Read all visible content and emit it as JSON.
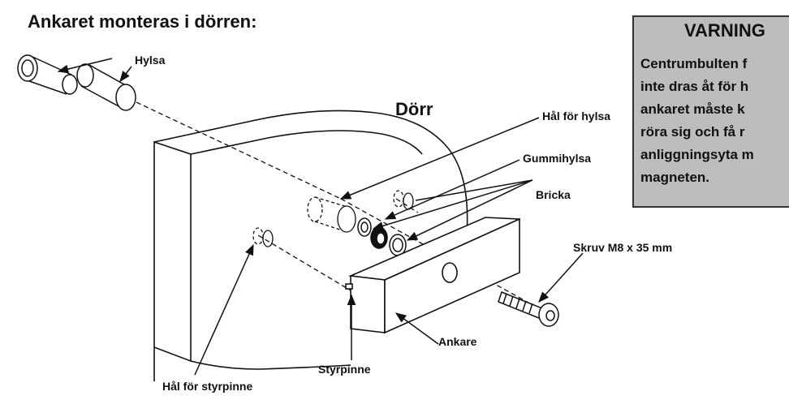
{
  "title": "Ankaret monteras i dörren:",
  "warning": {
    "heading": "VARNING",
    "lines": [
      "Centrumbulten f",
      "inte dras åt för h",
      "ankaret måste k",
      "röra sig och få r",
      "anliggningsyta m",
      "magneten."
    ]
  },
  "labels": {
    "hylsa": "Hylsa",
    "door": "Dörr",
    "hal_for_hylsa": "Hål för hylsa",
    "gummihylsa": "Gummihylsa",
    "bricka": "Bricka",
    "skruv": "Skruv M8 x 35 mm",
    "ankare": "Ankare",
    "styrpinne": "Styrpinne",
    "hal_for_styrpinne": "Hål för styrpinne"
  }
}
